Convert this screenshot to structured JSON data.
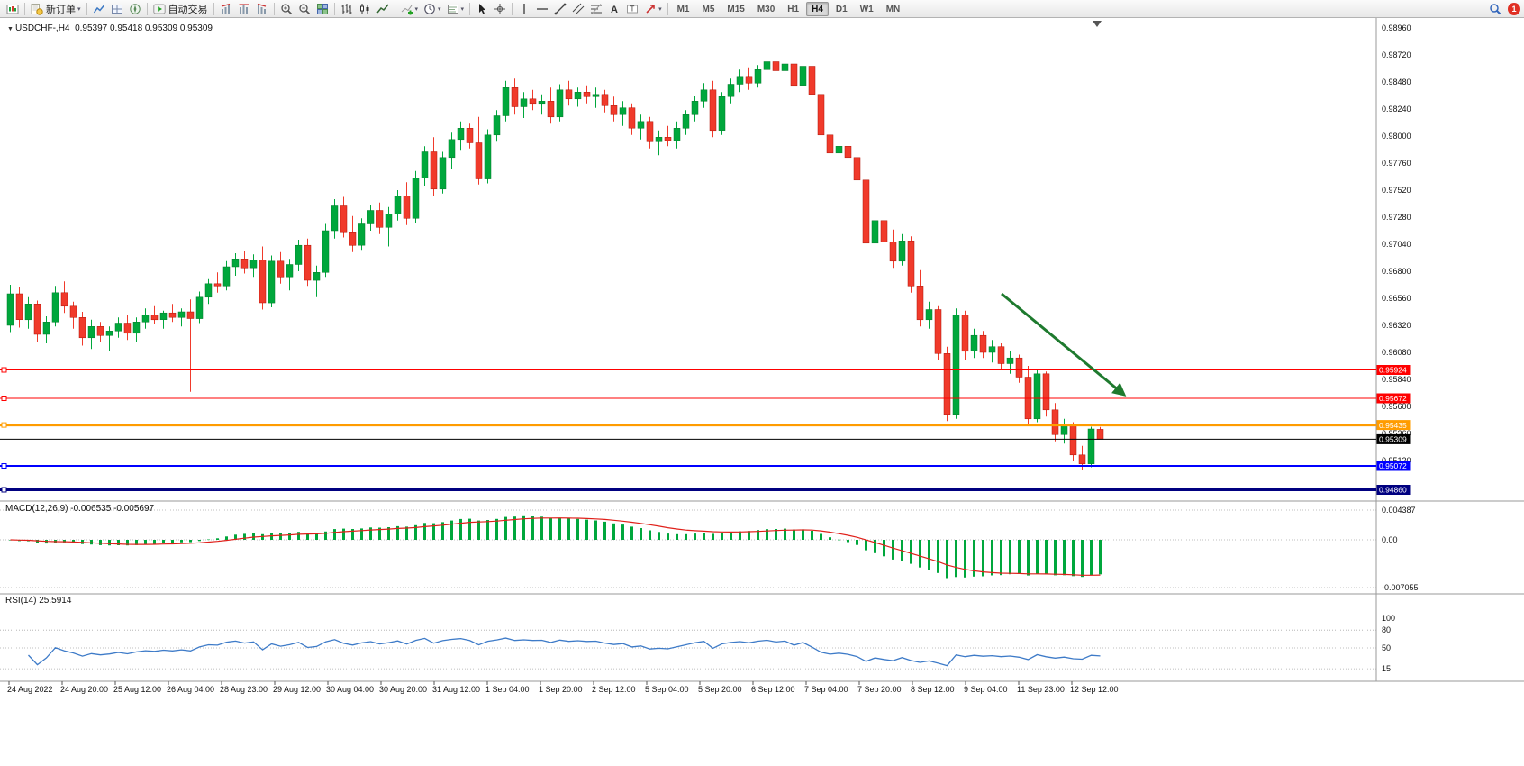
{
  "toolbar": {
    "new_order_label": "新订单",
    "autotrade_label": "自动交易",
    "timeframes": [
      "M1",
      "M5",
      "M15",
      "M30",
      "H1",
      "H4",
      "D1",
      "W1",
      "MN"
    ],
    "active_timeframe": "H4",
    "notification_count": "1",
    "groups": [
      {
        "items": [
          {
            "icon": "chart-window-icon"
          }
        ]
      },
      {
        "items": [
          {
            "icon": "new-order-icon",
            "label": "新订单",
            "caret": true
          }
        ]
      },
      {
        "items": [
          {
            "icon": "market-watch-icon"
          },
          {
            "icon": "data-window-icon"
          },
          {
            "icon": "navigator-icon"
          }
        ]
      },
      {
        "items": [
          {
            "icon": "autotrade-icon",
            "label": "自动交易"
          }
        ]
      },
      {
        "items": [
          {
            "icon": "period-up-icon"
          },
          {
            "icon": "period-flat-icon"
          },
          {
            "icon": "period-down-icon"
          }
        ]
      },
      {
        "items": [
          {
            "icon": "zoom-in-icon"
          },
          {
            "icon": "zoom-out-icon"
          },
          {
            "icon": "tile-windows-icon"
          }
        ]
      },
      {
        "items": [
          {
            "icon": "ohlc-bars-icon"
          },
          {
            "icon": "candlestick-icon"
          },
          {
            "icon": "line-chart-icon"
          }
        ]
      },
      {
        "items": [
          {
            "icon": "indicators-icon",
            "caret": true
          },
          {
            "icon": "clock-icon",
            "caret": true
          },
          {
            "icon": "templates-icon",
            "caret": true
          }
        ]
      },
      {
        "items": [
          {
            "icon": "cursor-icon"
          },
          {
            "icon": "crosshair-icon"
          }
        ]
      },
      {
        "items": [
          {
            "icon": "vline-icon"
          },
          {
            "icon": "hline-icon"
          },
          {
            "icon": "trendline-icon"
          },
          {
            "icon": "channel-icon"
          },
          {
            "icon": "fibonacci-icon"
          },
          {
            "icon": "text-icon"
          },
          {
            "icon": "label-icon"
          },
          {
            "icon": "arrows-icon",
            "caret": true
          }
        ]
      },
      {
        "items": [
          {
            "type": "timeframes"
          }
        ]
      }
    ],
    "right": [
      {
        "icon": "search-icon"
      },
      {
        "badge": "1"
      }
    ]
  },
  "chart": {
    "symbol_period": "USDCHF-,H4",
    "ohlc_text": "0.95397 0.95418 0.95309 0.95309",
    "price_axis_labels": [
      "0.98960",
      "0.98720",
      "0.98480",
      "0.98240",
      "0.98000",
      "0.97760",
      "0.97520",
      "0.97280",
      "0.97040",
      "0.96800",
      "0.96560",
      "0.96320",
      "0.96080",
      "0.95840",
      "0.95600",
      "0.95360",
      "0.95120"
    ],
    "time_axis_labels": [
      "24 Aug 2022",
      "24 Aug 20:00",
      "25 Aug 12:00",
      "26 Aug 04:00",
      "28 Aug 23:00",
      "29 Aug 12:00",
      "30 Aug 04:00",
      "30 Aug 20:00",
      "31 Aug 12:00",
      "1 Sep 04:00",
      "1 Sep 20:00",
      "2 Sep 12:00",
      "5 Sep 04:00",
      "5 Sep 20:00",
      "6 Sep 12:00",
      "7 Sep 04:00",
      "7 Sep 20:00",
      "8 Sep 12:00",
      "9 Sep 04:00",
      "11 Sep 23:00",
      "12 Sep 12:00"
    ],
    "hlines": [
      {
        "price": 0.95924,
        "label": "0.95924",
        "color": "#ff0000",
        "width": 1
      },
      {
        "price": 0.95672,
        "label": "0.95672",
        "color": "#ff0000",
        "width": 1
      },
      {
        "price": 0.95435,
        "label": "0.95435",
        "color": "#ff9c00",
        "width": 3
      },
      {
        "price": 0.95072,
        "label": "0.95072",
        "color": "#0000ff",
        "width": 2
      },
      {
        "price": 0.9486,
        "label": "0.94860",
        "color": "#000080",
        "width": 3
      }
    ],
    "current_price": {
      "price": 0.95309,
      "label": "0.95309",
      "color": "#000000"
    },
    "colors": {
      "bull": "#00a73c",
      "bear": "#f03a2b",
      "macd_hist": "#00a73c",
      "macd_signal": "#e0201a",
      "rsi_line": "#3e7bc8",
      "arrow": "#1e7a2e"
    }
  },
  "macd": {
    "label": "MACD(12,26,9)",
    "values": "-0.006535 -0.005697",
    "scale_labels": [
      "0.004387",
      "0.00",
      "-0.007055"
    ],
    "fast": 12,
    "slow": 26,
    "signal": 9
  },
  "rsi": {
    "label": "RSI(14)",
    "value": "25.5914",
    "period": 14,
    "levels": [
      80,
      50,
      15
    ],
    "scale_labels": [
      "100",
      "80",
      "50",
      "15"
    ]
  },
  "chart_data": {
    "type": "candlestick",
    "symbol": "USDCHF",
    "timeframe": "H4",
    "x_labels": [
      "24 Aug 2022",
      "24 Aug 20:00",
      "25 Aug 12:00",
      "26 Aug 04:00",
      "28 Aug 23:00",
      "29 Aug 12:00",
      "30 Aug 04:00",
      "30 Aug 20:00",
      "31 Aug 12:00",
      "1 Sep 04:00",
      "1 Sep 20:00",
      "2 Sep 12:00",
      "5 Sep 04:00",
      "5 Sep 20:00",
      "6 Sep 12:00",
      "7 Sep 04:00",
      "7 Sep 20:00",
      "8 Sep 12:00",
      "9 Sep 04:00",
      "11 Sep 23:00",
      "12 Sep 12:00"
    ],
    "ylim": [
      0.9484,
      0.99
    ],
    "candles": [
      [
        0.9632,
        0.9668,
        0.9626,
        0.966
      ],
      [
        0.966,
        0.9666,
        0.963,
        0.9637
      ],
      [
        0.9637,
        0.9657,
        0.9629,
        0.9651
      ],
      [
        0.9651,
        0.9654,
        0.9617,
        0.9624
      ],
      [
        0.9624,
        0.964,
        0.9616,
        0.9635
      ],
      [
        0.9635,
        0.9667,
        0.9631,
        0.9661
      ],
      [
        0.9661,
        0.9671,
        0.9643,
        0.9649
      ],
      [
        0.9649,
        0.9653,
        0.9629,
        0.9639
      ],
      [
        0.9639,
        0.9644,
        0.9614,
        0.9621
      ],
      [
        0.9621,
        0.9637,
        0.9611,
        0.9631
      ],
      [
        0.9631,
        0.9635,
        0.9617,
        0.9623
      ],
      [
        0.9623,
        0.9631,
        0.9609,
        0.9627
      ],
      [
        0.9627,
        0.9639,
        0.9621,
        0.9634
      ],
      [
        0.9634,
        0.9641,
        0.9619,
        0.9625
      ],
      [
        0.9625,
        0.9639,
        0.9617,
        0.9635
      ],
      [
        0.9635,
        0.9647,
        0.9629,
        0.9641
      ],
      [
        0.9641,
        0.9649,
        0.9633,
        0.9637
      ],
      [
        0.9637,
        0.9645,
        0.9629,
        0.9643
      ],
      [
        0.9643,
        0.9651,
        0.9635,
        0.9639
      ],
      [
        0.9639,
        0.9647,
        0.9631,
        0.9644
      ],
      [
        0.9644,
        0.9655,
        0.9573,
        0.9638
      ],
      [
        0.9638,
        0.9662,
        0.9634,
        0.9657
      ],
      [
        0.9657,
        0.9673,
        0.9651,
        0.9669
      ],
      [
        0.9669,
        0.9679,
        0.9661,
        0.9667
      ],
      [
        0.9667,
        0.9689,
        0.9663,
        0.9684
      ],
      [
        0.9684,
        0.9696,
        0.9676,
        0.9691
      ],
      [
        0.9691,
        0.9698,
        0.9678,
        0.9683
      ],
      [
        0.9683,
        0.9695,
        0.9675,
        0.969
      ],
      [
        0.969,
        0.9702,
        0.9646,
        0.9652
      ],
      [
        0.9652,
        0.9694,
        0.9648,
        0.9689
      ],
      [
        0.9689,
        0.9697,
        0.9669,
        0.9675
      ],
      [
        0.9675,
        0.9691,
        0.9663,
        0.9686
      ],
      [
        0.9686,
        0.9708,
        0.968,
        0.9703
      ],
      [
        0.9703,
        0.9709,
        0.9667,
        0.9672
      ],
      [
        0.9672,
        0.9685,
        0.9657,
        0.9679
      ],
      [
        0.9679,
        0.9722,
        0.9675,
        0.9716
      ],
      [
        0.9716,
        0.9744,
        0.9709,
        0.9738
      ],
      [
        0.9738,
        0.9746,
        0.971,
        0.9715
      ],
      [
        0.9715,
        0.9729,
        0.9697,
        0.9703
      ],
      [
        0.9703,
        0.9727,
        0.9699,
        0.9722
      ],
      [
        0.9722,
        0.9739,
        0.9716,
        0.9734
      ],
      [
        0.9734,
        0.9741,
        0.9713,
        0.9719
      ],
      [
        0.9719,
        0.9737,
        0.9702,
        0.9731
      ],
      [
        0.9731,
        0.9752,
        0.9725,
        0.9747
      ],
      [
        0.9747,
        0.9759,
        0.9721,
        0.9727
      ],
      [
        0.9727,
        0.9769,
        0.9723,
        0.9763
      ],
      [
        0.9763,
        0.9791,
        0.9756,
        0.9786
      ],
      [
        0.9786,
        0.9799,
        0.9747,
        0.9753
      ],
      [
        0.9753,
        0.9786,
        0.9749,
        0.9781
      ],
      [
        0.9781,
        0.9803,
        0.9771,
        0.9797
      ],
      [
        0.9797,
        0.9813,
        0.9787,
        0.9807
      ],
      [
        0.9807,
        0.9811,
        0.9789,
        0.9794
      ],
      [
        0.9794,
        0.9817,
        0.9757,
        0.9762
      ],
      [
        0.9762,
        0.9806,
        0.9758,
        0.9801
      ],
      [
        0.9801,
        0.9823,
        0.9795,
        0.9818
      ],
      [
        0.9818,
        0.9849,
        0.9813,
        0.9843
      ],
      [
        0.9843,
        0.9851,
        0.9819,
        0.9826
      ],
      [
        0.9826,
        0.9839,
        0.9816,
        0.9833
      ],
      [
        0.9833,
        0.9841,
        0.9823,
        0.9829
      ],
      [
        0.9829,
        0.9837,
        0.9819,
        0.9831
      ],
      [
        0.9831,
        0.9843,
        0.9811,
        0.9817
      ],
      [
        0.9817,
        0.9846,
        0.9813,
        0.9841
      ],
      [
        0.9841,
        0.9849,
        0.9827,
        0.9833
      ],
      [
        0.9833,
        0.9843,
        0.9826,
        0.9839
      ],
      [
        0.9839,
        0.9845,
        0.9829,
        0.9835
      ],
      [
        0.9835,
        0.9843,
        0.9825,
        0.9837
      ],
      [
        0.9837,
        0.9841,
        0.9821,
        0.9827
      ],
      [
        0.9827,
        0.9835,
        0.9813,
        0.9819
      ],
      [
        0.9819,
        0.9831,
        0.9809,
        0.9825
      ],
      [
        0.9825,
        0.9829,
        0.9801,
        0.9807
      ],
      [
        0.9807,
        0.9819,
        0.9797,
        0.9813
      ],
      [
        0.9813,
        0.9817,
        0.9789,
        0.9795
      ],
      [
        0.9795,
        0.9805,
        0.9783,
        0.9799
      ],
      [
        0.9799,
        0.9809,
        0.9791,
        0.9796
      ],
      [
        0.9796,
        0.9813,
        0.9789,
        0.9807
      ],
      [
        0.9807,
        0.9823,
        0.9801,
        0.9819
      ],
      [
        0.9819,
        0.9836,
        0.9813,
        0.9831
      ],
      [
        0.9831,
        0.9847,
        0.9825,
        0.9841
      ],
      [
        0.9841,
        0.9849,
        0.9799,
        0.9805
      ],
      [
        0.9805,
        0.9839,
        0.9801,
        0.9835
      ],
      [
        0.9835,
        0.9851,
        0.9829,
        0.9846
      ],
      [
        0.9846,
        0.9859,
        0.9839,
        0.9853
      ],
      [
        0.9853,
        0.9861,
        0.9841,
        0.9847
      ],
      [
        0.9847,
        0.9863,
        0.9843,
        0.9859
      ],
      [
        0.9859,
        0.9871,
        0.9851,
        0.9866
      ],
      [
        0.9866,
        0.9872,
        0.9853,
        0.9858
      ],
      [
        0.9858,
        0.9869,
        0.9849,
        0.9864
      ],
      [
        0.9864,
        0.987,
        0.9839,
        0.9845
      ],
      [
        0.9845,
        0.9867,
        0.9841,
        0.9862
      ],
      [
        0.9862,
        0.9868,
        0.9831,
        0.9837
      ],
      [
        0.9837,
        0.9846,
        0.9796,
        0.9801
      ],
      [
        0.9801,
        0.9813,
        0.9779,
        0.9785
      ],
      [
        0.9785,
        0.9796,
        0.9773,
        0.9791
      ],
      [
        0.9791,
        0.9797,
        0.9777,
        0.9781
      ],
      [
        0.9781,
        0.9787,
        0.9757,
        0.9761
      ],
      [
        0.9761,
        0.9769,
        0.9699,
        0.9705
      ],
      [
        0.9705,
        0.9731,
        0.9701,
        0.9725
      ],
      [
        0.9725,
        0.9733,
        0.9699,
        0.9706
      ],
      [
        0.9706,
        0.9717,
        0.9683,
        0.9689
      ],
      [
        0.9689,
        0.9713,
        0.9685,
        0.9707
      ],
      [
        0.9707,
        0.9711,
        0.9661,
        0.9667
      ],
      [
        0.9667,
        0.9681,
        0.9631,
        0.9637
      ],
      [
        0.9637,
        0.9653,
        0.9629,
        0.9646
      ],
      [
        0.9646,
        0.9649,
        0.9601,
        0.9607
      ],
      [
        0.9607,
        0.9613,
        0.9547,
        0.9553
      ],
      [
        0.9553,
        0.9647,
        0.9549,
        0.9641
      ],
      [
        0.9641,
        0.9645,
        0.9601,
        0.9609
      ],
      [
        0.9609,
        0.9629,
        0.9603,
        0.9623
      ],
      [
        0.9623,
        0.9627,
        0.9603,
        0.9608
      ],
      [
        0.9608,
        0.9619,
        0.9599,
        0.9613
      ],
      [
        0.9613,
        0.9616,
        0.9593,
        0.9598
      ],
      [
        0.9598,
        0.9609,
        0.9589,
        0.9603
      ],
      [
        0.9603,
        0.9606,
        0.9581,
        0.9586
      ],
      [
        0.9586,
        0.9596,
        0.9544,
        0.9549
      ],
      [
        0.9549,
        0.9593,
        0.9546,
        0.9589
      ],
      [
        0.9589,
        0.9591,
        0.9551,
        0.9557
      ],
      [
        0.9557,
        0.9563,
        0.9529,
        0.9535
      ],
      [
        0.9535,
        0.9549,
        0.9527,
        0.9543
      ],
      [
        0.9543,
        0.9546,
        0.9512,
        0.9517
      ],
      [
        0.9517,
        0.9525,
        0.9504,
        0.9509
      ],
      [
        0.9509,
        0.9542,
        0.9506,
        0.954
      ],
      [
        0.95397,
        0.95418,
        0.95309,
        0.95309
      ]
    ]
  }
}
